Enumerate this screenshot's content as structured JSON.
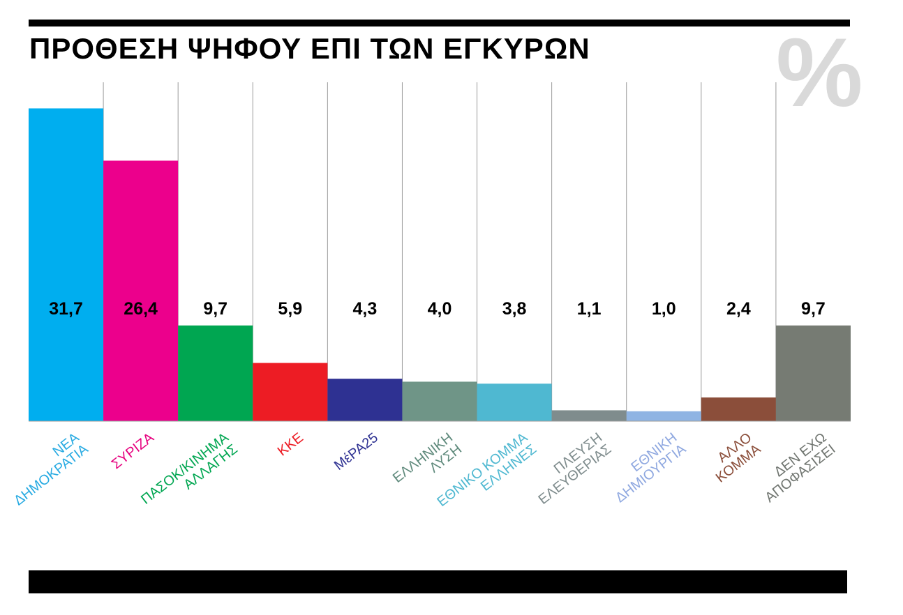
{
  "title": "ΠΡΟΘΕΣΗ ΨΗΦΟΥ ΕΠΙ ΤΩΝ ΕΓΚΥΡΩΝ",
  "unit_symbol": "%",
  "chart_data": {
    "type": "bar",
    "title": "ΠΡΟΘΕΣΗ ΨΗΦΟΥ ΕΠΙ ΤΩΝ ΕΓΚΥΡΩΝ",
    "unit": "%",
    "ylim": [
      0,
      32
    ],
    "grid": true,
    "categories": [
      [
        "ΝΕΑ",
        "ΔΗΜΟΚΡΑΤΙΑ"
      ],
      [
        "ΣΥΡΙΖΑ"
      ],
      [
        "ΠΑΣΟΚ/ΚΙΝΗΜΑ",
        "ΑΛΛΑΓΗΣ"
      ],
      [
        "ΚΚΕ"
      ],
      [
        "ΜέΡΑ25"
      ],
      [
        "ΕΛΛΗΝΙΚΗ",
        "ΛΥΣΗ"
      ],
      [
        "ΕΘΝΙΚΟ ΚΟΜΜΑ",
        "ΕΛΛΗΝΕΣ"
      ],
      [
        "ΠΛΕΥΣΗ",
        "ΕΛΕΥΘΕΡΙΑΣ"
      ],
      [
        "ΕΘΝΙΚΗ",
        "ΔΗΜΙΟΥΡΓΙΑ"
      ],
      [
        "ΑΛΛΟ",
        "ΚΟΜΜΑ"
      ],
      [
        "ΔΕΝ ΕΧΩ",
        "ΑΠΟΦΑΣΙΣΕΙ"
      ]
    ],
    "values": [
      31.7,
      26.4,
      9.7,
      5.9,
      4.3,
      4.0,
      3.8,
      1.1,
      1.0,
      2.4,
      9.7
    ],
    "value_labels": [
      "31,7",
      "26,4",
      "9,7",
      "5,9",
      "4,3",
      "4,0",
      "3,8",
      "1,1",
      "1,0",
      "2,4",
      "9,7"
    ],
    "colors": [
      "#00aeef",
      "#ec008c",
      "#00a651",
      "#ed1c24",
      "#2e3192",
      "#6f9587",
      "#4fb8d1",
      "#7f8c8d",
      "#8fb4e3",
      "#8b4e3a",
      "#767b73"
    ],
    "label_colors": [
      "#29abe2",
      "#e6007e",
      "#00a651",
      "#ed1c24",
      "#2e3192",
      "#5f8a7c",
      "#4fb8d1",
      "#7f8c8d",
      "#8fa8e0",
      "#8b4e3a",
      "#707570"
    ]
  }
}
